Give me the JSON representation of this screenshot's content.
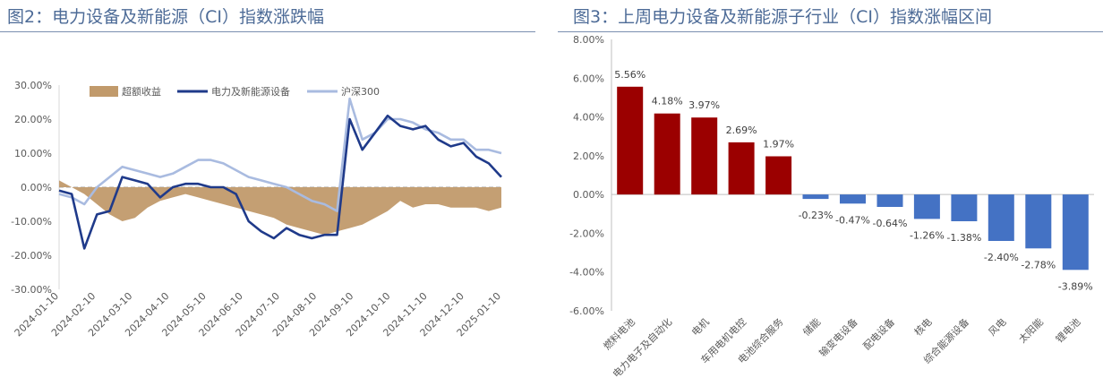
{
  "panels": {
    "left_title": "图2：电力设备及新能源（CI）指数涨跌幅",
    "right_title": "图3：上周电力设备及新能源子行业（CI）指数涨幅区间"
  },
  "chart_data": [
    {
      "type": "line",
      "title": "图2：电力设备及新能源（CI）指数涨跌幅",
      "y_ticks": [
        "30.00%",
        "20.00%",
        "10.00%",
        "0.00%",
        "-10.00%",
        "-20.00%",
        "-30.00%"
      ],
      "ylim": [
        -30,
        30
      ],
      "x_ticks": [
        "2024-01-10",
        "2024-02-10",
        "2024-03-10",
        "2024-04-10",
        "2024-05-10",
        "2024-06-10",
        "2024-07-10",
        "2024-08-10",
        "2024-09-10",
        "2024-10-10",
        "2024-11-10",
        "2024-12-10",
        "2025-01-10"
      ],
      "legend_position": "top",
      "series": [
        {
          "name": "超额收益",
          "kind": "area",
          "color": "#c19a6b",
          "values": [
            2,
            0,
            -2,
            -5,
            -8,
            -10,
            -9,
            -6,
            -4,
            -3,
            -2,
            -3,
            -4,
            -5,
            -6,
            -7,
            -8,
            -9,
            -11,
            -12,
            -13,
            -14,
            -13,
            -12,
            -11,
            -9,
            -7,
            -4,
            -6,
            -5,
            -5,
            -6,
            -6,
            -6,
            -7,
            -6
          ]
        },
        {
          "name": "电力及新能源设备",
          "kind": "line",
          "color": "#1f3a8a",
          "values": [
            -1,
            -2,
            -18,
            -8,
            -7,
            3,
            2,
            1,
            -3,
            0,
            1,
            1,
            0,
            0,
            -2,
            -10,
            -13,
            -15,
            -12,
            -14,
            -15,
            -14,
            -14,
            20,
            11,
            16,
            21,
            18,
            17,
            18,
            14,
            12,
            13,
            9,
            7,
            3
          ]
        },
        {
          "name": "沪深300",
          "kind": "line",
          "color": "#a9bbe0",
          "values": [
            -2,
            -3,
            -5,
            0,
            3,
            6,
            5,
            4,
            3,
            4,
            6,
            8,
            8,
            7,
            5,
            3,
            2,
            1,
            0,
            -2,
            -4,
            -5,
            -7,
            26,
            14,
            16,
            20,
            20,
            19,
            17,
            16,
            14,
            14,
            11,
            11,
            10
          ]
        }
      ]
    },
    {
      "type": "bar",
      "title": "图3：上周电力设备及新能源子行业（CI）指数涨幅区间",
      "ylim": [
        -6,
        8
      ],
      "y_ticks": [
        "8.00%",
        "6.00%",
        "4.00%",
        "2.00%",
        "0.00%",
        "-2.00%",
        "-4.00%",
        "-6.00%"
      ],
      "positive_color": "#9b0000",
      "negative_color": "#4472c4",
      "categories": [
        "燃料电池",
        "电力电子及自动化",
        "电机",
        "车用电机电控",
        "电池综合服务",
        "储能",
        "输变电设备",
        "配电设备",
        "核电",
        "综合能源设备",
        "风电",
        "太阳能",
        "锂电池"
      ],
      "values": [
        5.56,
        4.18,
        3.97,
        2.69,
        1.97,
        -0.23,
        -0.47,
        -0.64,
        -1.26,
        -1.38,
        -2.4,
        -2.78,
        -3.89
      ],
      "labels": [
        "5.56%",
        "4.18%",
        "3.97%",
        "2.69%",
        "1.97%",
        "-0.23%",
        "-0.47%",
        "-0.64%",
        "-1.26%",
        "-1.38%",
        "-2.40%",
        "-2.78%",
        "-3.89%"
      ]
    }
  ]
}
